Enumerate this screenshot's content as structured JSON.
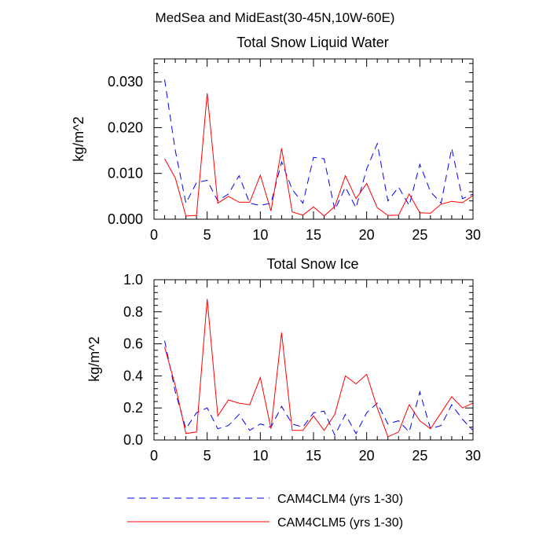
{
  "suptitle": "MedSea and MidEast(30-45N,10W-60E)",
  "colors": {
    "CAM4CLM4": "#0000ff",
    "CAM4CLM5": "#ff0000"
  },
  "chart_data": [
    {
      "type": "line",
      "title": "Total Snow Liquid Water",
      "xlabel": "",
      "ylabel": "kg/m^2",
      "xlim": [
        0,
        30
      ],
      "ylim": [
        0,
        0.035
      ],
      "xticks": [
        0,
        5,
        10,
        15,
        20,
        25,
        30
      ],
      "xtick_labels": [
        "0",
        "5",
        "10",
        "15",
        "20",
        "25",
        "30"
      ],
      "yticks": [
        0,
        0.01,
        0.02,
        0.03
      ],
      "ytick_labels": [
        "0.000",
        "0.010",
        "0.020",
        "0.030"
      ],
      "x": [
        1,
        2,
        3,
        4,
        5,
        6,
        7,
        8,
        9,
        10,
        11,
        12,
        13,
        14,
        15,
        16,
        17,
        18,
        19,
        20,
        21,
        22,
        23,
        24,
        25,
        26,
        27,
        28,
        29,
        30
      ],
      "series": [
        {
          "name": "CAM4CLM4 (yrs 1-30)",
          "style": "dashed",
          "values": [
            0.0305,
            0.015,
            0.0035,
            0.008,
            0.0085,
            0.004,
            0.0055,
            0.0095,
            0.0035,
            0.003,
            0.0035,
            0.0125,
            0.0065,
            0.0035,
            0.0135,
            0.0132,
            0.002,
            0.007,
            0.0025,
            0.011,
            0.0165,
            0.004,
            0.007,
            0.003,
            0.012,
            0.006,
            0.0035,
            0.0155,
            0.0045,
            0.0055
          ]
        },
        {
          "name": "CAM4CLM5 (yrs 1-30)",
          "style": "solid",
          "values": [
            0.0132,
            0.009,
            0.0007,
            0.0008,
            0.0275,
            0.0035,
            0.005,
            0.0037,
            0.0037,
            0.0096,
            0.0018,
            0.0155,
            0.0016,
            0.0009,
            0.0027,
            0.0007,
            0.0028,
            0.0095,
            0.0045,
            0.0078,
            0.0025,
            0.0008,
            0.0009,
            0.0055,
            0.0014,
            0.0013,
            0.0033,
            0.0039,
            0.0036,
            0.0052
          ]
        }
      ]
    },
    {
      "type": "line",
      "title": "Total Snow Ice",
      "xlabel": "",
      "ylabel": "kg/m^2",
      "xlim": [
        0,
        30
      ],
      "ylim": [
        0,
        1.0
      ],
      "xticks": [
        0,
        5,
        10,
        15,
        20,
        25,
        30
      ],
      "xtick_labels": [
        "0",
        "5",
        "10",
        "15",
        "20",
        "25",
        "30"
      ],
      "yticks": [
        0,
        0.2,
        0.4,
        0.6,
        0.8,
        1.0
      ],
      "ytick_labels": [
        "0.0",
        "0.2",
        "0.4",
        "0.6",
        "0.8",
        "1.0"
      ],
      "x": [
        1,
        2,
        3,
        4,
        5,
        6,
        7,
        8,
        9,
        10,
        11,
        12,
        13,
        14,
        15,
        16,
        17,
        18,
        19,
        20,
        21,
        22,
        23,
        24,
        25,
        26,
        27,
        28,
        29,
        30
      ],
      "series": [
        {
          "name": "CAM4CLM4 (yrs 1-30)",
          "style": "dashed",
          "values": [
            0.62,
            0.3,
            0.07,
            0.17,
            0.2,
            0.07,
            0.09,
            0.16,
            0.06,
            0.1,
            0.08,
            0.21,
            0.1,
            0.08,
            0.17,
            0.18,
            0.03,
            0.16,
            0.04,
            0.17,
            0.23,
            0.1,
            0.12,
            0.05,
            0.3,
            0.07,
            0.09,
            0.22,
            0.13,
            0.06
          ]
        },
        {
          "name": "CAM4CLM5 (yrs 1-30)",
          "style": "solid",
          "values": [
            0.58,
            0.34,
            0.04,
            0.05,
            0.88,
            0.15,
            0.25,
            0.23,
            0.22,
            0.39,
            0.07,
            0.67,
            0.06,
            0.06,
            0.15,
            0.06,
            0.16,
            0.4,
            0.35,
            0.41,
            0.2,
            0.02,
            0.05,
            0.22,
            0.12,
            0.07,
            0.17,
            0.27,
            0.2,
            0.23
          ]
        }
      ]
    }
  ],
  "legend": {
    "placement": "bottom",
    "items": [
      {
        "label": "CAM4CLM4 (yrs 1-30)",
        "style": "dashed",
        "color": "#0000ff"
      },
      {
        "label": "CAM4CLM5 (yrs 1-30)",
        "style": "solid",
        "color": "#ff0000"
      }
    ]
  }
}
